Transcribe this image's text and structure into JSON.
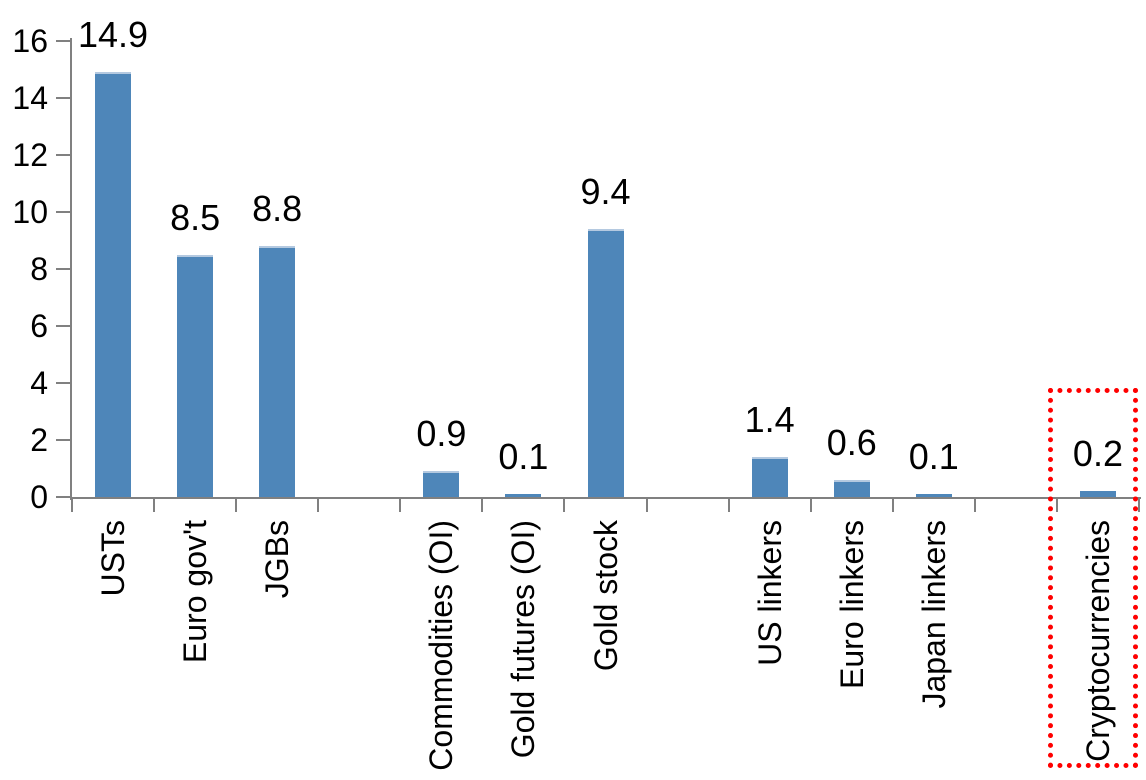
{
  "chart_data": {
    "type": "bar",
    "title": "",
    "xlabel": "",
    "ylabel": "",
    "categories": [
      "USTs",
      "Euro gov't",
      "JGBs",
      "",
      "Commodities (OI)",
      "Gold futures (OI)",
      "Gold stock",
      "",
      "US linkers",
      "Euro linkers",
      "Japan linkers",
      "",
      "Cryptocurrencies"
    ],
    "values": [
      14.9,
      8.5,
      8.8,
      null,
      0.9,
      0.1,
      9.4,
      null,
      1.4,
      0.6,
      0.1,
      null,
      0.2
    ],
    "value_labels": [
      "14.9",
      "8.5",
      "8.8",
      "",
      "0.9",
      "0.1",
      "9.4",
      "",
      "1.4",
      "0.6",
      "0.1",
      "",
      "0.2"
    ],
    "y_ticks": [
      0,
      2,
      4,
      6,
      8,
      10,
      12,
      14,
      16
    ],
    "ylim": [
      0,
      16
    ],
    "grid": false,
    "legend": "none",
    "bar_color": "#4E86B9",
    "bar_top_edge_color": "#B4C9E0",
    "axis_color": "#808080",
    "text_color": "#000000",
    "highlight": {
      "category": "Cryptocurrencies",
      "style": "red-dotted-box",
      "color": "#FF0000"
    }
  }
}
